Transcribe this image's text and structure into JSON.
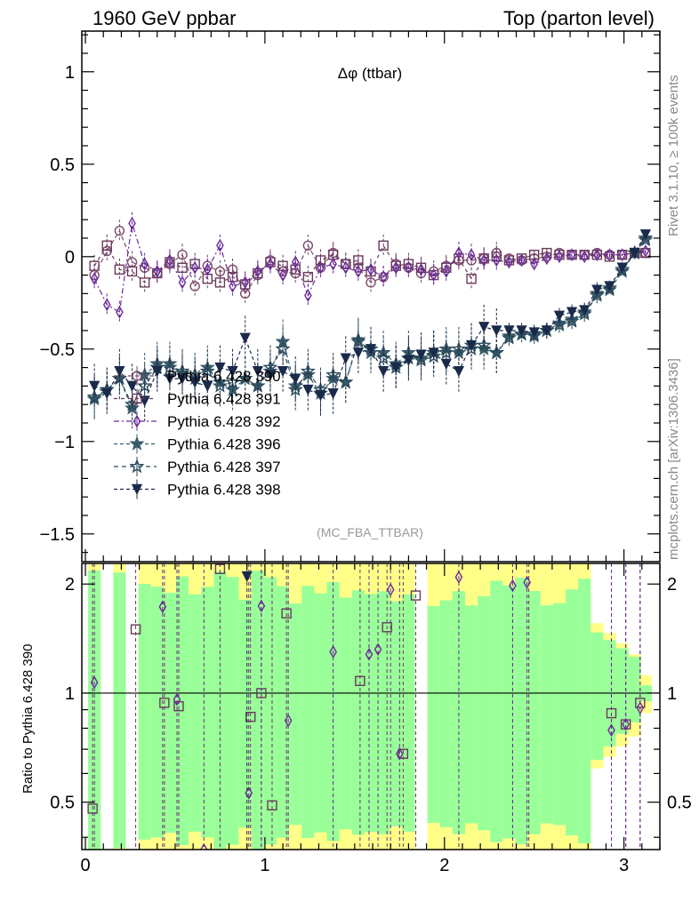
{
  "header": {
    "left": "1960 GeV ppbar",
    "right": "Top (parton level)"
  },
  "annotations": {
    "observable": "Δφ (ttbar)",
    "analysis": "(MC_FBA_TTBAR)",
    "side_top": "Rivet 3.1.10, ≥ 100k events",
    "side_bottom": "mcplots.cern.ch [arXiv:1306.3436]"
  },
  "ratio_ylabel": "Ratio to Pythia 6.428 390",
  "colors": {
    "band_green": "#99ff99",
    "band_yellow": "#ffff88",
    "s390": "#7a4a6a",
    "s391": "#6a3a5a",
    "s392": "#6a2a9a",
    "s396": "#3a5a6a",
    "s397": "#2a4a5a",
    "s398": "#1a2a4a"
  },
  "chart_data": [
    {
      "type": "line",
      "panel": "main",
      "xlim": [
        -0.02,
        3.2
      ],
      "ylim": [
        -1.65,
        1.22
      ],
      "yticks": [
        "1",
        "0.5",
        "0",
        "−0.5",
        "−1",
        "−1.5"
      ],
      "ytick_values": [
        1,
        0.5,
        0,
        -0.5,
        -1,
        -1.5
      ],
      "legend_position": "lower-left",
      "series": [
        {
          "name": "Pythia 6.428 390",
          "marker": "circle-open",
          "color": "#7a4a6a",
          "x": [
            0.05,
            0.12,
            0.19,
            0.26,
            0.33,
            0.4,
            0.47,
            0.54,
            0.61,
            0.68,
            0.75,
            0.82,
            0.89,
            0.96,
            1.03,
            1.1,
            1.17,
            1.24,
            1.31,
            1.38,
            1.45,
            1.52,
            1.59,
            1.66,
            1.73,
            1.8,
            1.87,
            1.94,
            2.01,
            2.08,
            2.15,
            2.22,
            2.29,
            2.36,
            2.43,
            2.5,
            2.57,
            2.64,
            2.71,
            2.78,
            2.85,
            2.92,
            2.99,
            3.06,
            3.12
          ],
          "y": [
            -0.1,
            0.03,
            0.14,
            -0.03,
            -0.06,
            -0.09,
            -0.04,
            0.01,
            -0.16,
            -0.05,
            -0.08,
            -0.07,
            -0.2,
            -0.1,
            -0.02,
            -0.08,
            -0.09,
            0.06,
            -0.06,
            0.02,
            -0.04,
            -0.06,
            -0.14,
            -0.11,
            -0.04,
            -0.06,
            -0.09,
            -0.08,
            -0.05,
            -0.02,
            -0.02,
            -0.01,
            0.02,
            -0.01,
            -0.02,
            -0.01,
            0.0,
            0.02,
            0.01,
            0.01,
            0.02,
            0.01,
            0.01,
            0.02,
            0.02
          ]
        },
        {
          "name": "Pythia 6.428 391",
          "marker": "square-open",
          "color": "#6a3a5a",
          "x": [
            0.05,
            0.12,
            0.19,
            0.26,
            0.33,
            0.4,
            0.47,
            0.54,
            0.61,
            0.68,
            0.75,
            0.82,
            0.89,
            0.96,
            1.03,
            1.1,
            1.17,
            1.24,
            1.31,
            1.38,
            1.45,
            1.52,
            1.59,
            1.66,
            1.73,
            1.8,
            1.87,
            1.94,
            2.01,
            2.08,
            2.15,
            2.22,
            2.29,
            2.36,
            2.43,
            2.5,
            2.57,
            2.64,
            2.71,
            2.78,
            2.85,
            2.92,
            2.99,
            3.06,
            3.12
          ],
          "y": [
            -0.05,
            0.06,
            -0.07,
            -0.08,
            -0.14,
            -0.09,
            -0.03,
            -0.06,
            -0.04,
            -0.12,
            -0.14,
            -0.11,
            -0.15,
            -0.09,
            -0.03,
            -0.05,
            -0.07,
            -0.11,
            -0.02,
            0.01,
            -0.04,
            -0.02,
            -0.08,
            0.06,
            -0.05,
            -0.04,
            -0.06,
            -0.1,
            -0.06,
            -0.01,
            -0.12,
            -0.01,
            0.0,
            -0.02,
            -0.01,
            0.01,
            0.02,
            0.01,
            0.01,
            0.01,
            0.01,
            0.0,
            0.01,
            0.02,
            0.02
          ]
        },
        {
          "name": "Pythia 6.428 392",
          "marker": "diamond-open",
          "color": "#6a2a9a",
          "x": [
            0.05,
            0.12,
            0.19,
            0.26,
            0.33,
            0.4,
            0.47,
            0.54,
            0.61,
            0.68,
            0.75,
            0.82,
            0.89,
            0.96,
            1.03,
            1.1,
            1.17,
            1.24,
            1.31,
            1.38,
            1.45,
            1.52,
            1.59,
            1.66,
            1.73,
            1.8,
            1.87,
            1.94,
            2.01,
            2.08,
            2.15,
            2.22,
            2.29,
            2.36,
            2.43,
            2.5,
            2.57,
            2.64,
            2.71,
            2.78,
            2.85,
            2.92,
            2.99,
            3.06,
            3.12
          ],
          "y": [
            -0.12,
            -0.26,
            -0.3,
            0.18,
            -0.04,
            -0.08,
            -0.02,
            -0.14,
            -0.06,
            -0.07,
            0.06,
            -0.16,
            -0.14,
            -0.08,
            -0.04,
            -0.1,
            -0.03,
            -0.21,
            -0.06,
            -0.04,
            -0.06,
            -0.08,
            -0.07,
            -0.11,
            -0.06,
            -0.06,
            -0.07,
            -0.1,
            -0.08,
            0.02,
            0.01,
            -0.02,
            -0.02,
            -0.03,
            -0.02,
            -0.04,
            -0.01,
            0.0,
            0.01,
            0.0,
            0.01,
            0.01,
            0.01,
            0.02,
            0.03
          ]
        },
        {
          "name": "Pythia 6.428 396",
          "marker": "star-filled",
          "color": "#3a5a6a",
          "x": [
            0.05,
            0.12,
            0.19,
            0.26,
            0.33,
            0.4,
            0.47,
            0.54,
            0.61,
            0.68,
            0.75,
            0.82,
            0.89,
            0.96,
            1.03,
            1.1,
            1.17,
            1.24,
            1.31,
            1.38,
            1.45,
            1.52,
            1.59,
            1.66,
            1.73,
            1.8,
            1.87,
            1.94,
            2.01,
            2.08,
            2.15,
            2.22,
            2.29,
            2.36,
            2.43,
            2.5,
            2.57,
            2.64,
            2.71,
            2.78,
            2.85,
            2.92,
            2.99,
            3.06,
            3.12
          ],
          "y": [
            -0.77,
            -0.72,
            -0.66,
            -0.82,
            -0.64,
            -0.58,
            -0.58,
            -0.63,
            -0.66,
            -0.6,
            -0.68,
            -0.72,
            -0.66,
            -0.7,
            -0.62,
            -0.46,
            -0.7,
            -0.64,
            -0.74,
            -0.66,
            -0.68,
            -0.45,
            -0.52,
            -0.52,
            -0.58,
            -0.52,
            -0.55,
            -0.52,
            -0.5,
            -0.52,
            -0.48,
            -0.5,
            -0.52,
            -0.43,
            -0.42,
            -0.43,
            -0.4,
            -0.36,
            -0.34,
            -0.3,
            -0.2,
            -0.18,
            -0.08,
            0.02,
            0.1
          ]
        },
        {
          "name": "Pythia 6.428 397",
          "marker": "star-open",
          "color": "#2a4a5a",
          "x": [
            0.05,
            0.12,
            0.19,
            0.26,
            0.33,
            0.4,
            0.47,
            0.54,
            0.61,
            0.68,
            0.75,
            0.82,
            0.89,
            0.96,
            1.03,
            1.1,
            1.17,
            1.24,
            1.31,
            1.38,
            1.45,
            1.52,
            1.59,
            1.66,
            1.73,
            1.8,
            1.87,
            1.94,
            2.01,
            2.08,
            2.15,
            2.22,
            2.29,
            2.36,
            2.43,
            2.5,
            2.57,
            2.64,
            2.71,
            2.78,
            2.85,
            2.92,
            2.99,
            3.06,
            3.12
          ],
          "y": [
            -0.76,
            -0.72,
            -0.66,
            -0.8,
            -0.7,
            -0.6,
            -0.6,
            -0.62,
            -0.64,
            -0.62,
            -0.7,
            -0.68,
            -0.66,
            -0.7,
            -0.6,
            -0.5,
            -0.72,
            -0.62,
            -0.72,
            -0.64,
            -0.68,
            -0.46,
            -0.5,
            -0.55,
            -0.6,
            -0.55,
            -0.56,
            -0.54,
            -0.52,
            -0.5,
            -0.5,
            -0.48,
            -0.52,
            -0.44,
            -0.42,
            -0.42,
            -0.4,
            -0.37,
            -0.35,
            -0.31,
            -0.21,
            -0.17,
            -0.07,
            0.02,
            0.09
          ]
        },
        {
          "name": "Pythia 6.428 398",
          "marker": "triangle-down-filled",
          "color": "#1a2a4a",
          "x": [
            0.05,
            0.12,
            0.19,
            0.26,
            0.33,
            0.4,
            0.47,
            0.54,
            0.61,
            0.68,
            0.75,
            0.82,
            0.89,
            0.96,
            1.03,
            1.1,
            1.17,
            1.24,
            1.31,
            1.38,
            1.45,
            1.52,
            1.59,
            1.66,
            1.73,
            1.8,
            1.87,
            1.94,
            2.01,
            2.08,
            2.15,
            2.22,
            2.29,
            2.36,
            2.43,
            2.5,
            2.57,
            2.64,
            2.71,
            2.78,
            2.85,
            2.92,
            2.99,
            3.06,
            3.12
          ],
          "y": [
            -0.7,
            -0.74,
            -0.62,
            -0.7,
            -0.78,
            -0.62,
            -0.66,
            -0.66,
            -0.68,
            -0.7,
            -0.6,
            -0.62,
            -0.44,
            -0.62,
            -0.64,
            -0.62,
            -0.66,
            -0.72,
            -0.75,
            -0.74,
            -0.55,
            -0.52,
            -0.5,
            -0.62,
            -0.6,
            -0.56,
            -0.53,
            -0.52,
            -0.58,
            -0.62,
            -0.48,
            -0.38,
            -0.4,
            -0.4,
            -0.4,
            -0.41,
            -0.4,
            -0.32,
            -0.3,
            -0.29,
            -0.18,
            -0.16,
            -0.06,
            0.02,
            0.12
          ]
        }
      ]
    },
    {
      "type": "line",
      "panel": "ratio",
      "xlim": [
        -0.02,
        3.2
      ],
      "ylim": [
        0.37,
        2.28
      ],
      "log_y": true,
      "reference_line": 1,
      "yticks": [
        "2",
        "1",
        "0.5"
      ],
      "ytick_values": [
        2,
        1,
        0.5
      ],
      "xticks": [
        "0",
        "1",
        "2",
        "3"
      ],
      "xtick_values": [
        0,
        1,
        2,
        3
      ],
      "series": [
        {
          "name": "Pythia 6.428 391",
          "marker": "square-open",
          "color": "#6a3a5a",
          "x": [
            0.04,
            0.28,
            0.44,
            0.52,
            0.75,
            0.92,
            0.98,
            1.04,
            1.12,
            1.53,
            1.68,
            1.77,
            1.84,
            2.47,
            2.93,
            3.01,
            3.09
          ],
          "y": [
            0.48,
            1.5,
            0.94,
            0.92,
            2.2,
            0.86,
            1.0,
            0.49,
            1.66,
            1.08,
            1.52,
            0.68,
            1.86,
            0.36,
            0.88,
            0.82,
            0.94
          ]
        },
        {
          "name": "Pythia 6.428 392",
          "marker": "diamond-open",
          "color": "#6a2a9a",
          "x": [
            0.05,
            0.43,
            0.51,
            0.66,
            0.91,
            0.98,
            1.13,
            1.38,
            1.58,
            1.63,
            1.7,
            1.75,
            2.08,
            2.38,
            2.46,
            2.93,
            3.01,
            3.09
          ],
          "y": [
            1.07,
            1.73,
            0.96,
            0.37,
            0.53,
            1.74,
            0.84,
            1.3,
            1.28,
            1.32,
            1.93,
            0.68,
            2.09,
            1.98,
            2.02,
            0.79,
            0.82,
            0.91
          ]
        },
        {
          "name": "Pythia 6.428 398",
          "marker": "triangle-down-filled",
          "color": "#1a2a4a",
          "x": [
            0.9
          ],
          "y": [
            2.1
          ]
        }
      ]
    }
  ]
}
